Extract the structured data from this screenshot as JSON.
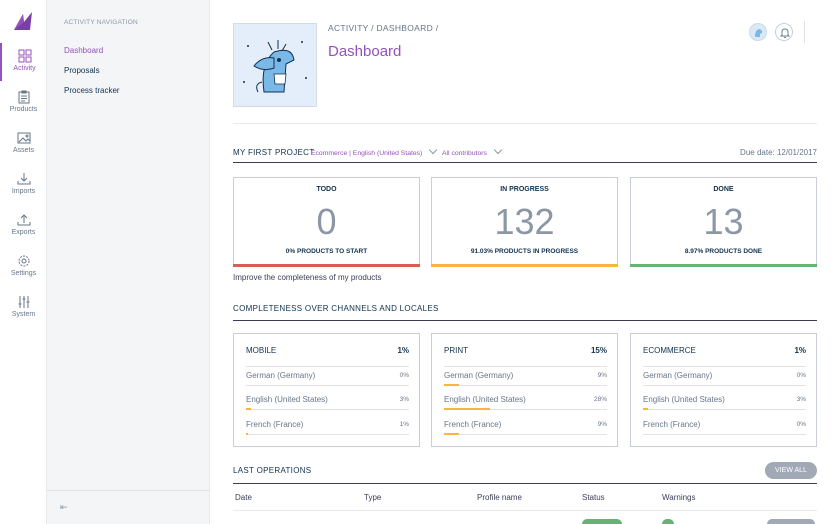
{
  "rail": {
    "items": [
      {
        "label": "Activity",
        "icon": "activity-icon"
      },
      {
        "label": "Products",
        "icon": "clipboard-icon"
      },
      {
        "label": "Assets",
        "icon": "image-icon"
      },
      {
        "label": "Imports",
        "icon": "download-icon"
      },
      {
        "label": "Exports",
        "icon": "upload-icon"
      },
      {
        "label": "Settings",
        "icon": "gear-icon"
      },
      {
        "label": "System",
        "icon": "sliders-icon"
      }
    ]
  },
  "subnav": {
    "title": "ACTIVITY NAVIGATION",
    "items": [
      {
        "label": "Dashboard"
      },
      {
        "label": "Proposals"
      },
      {
        "label": "Process tracker"
      }
    ],
    "collapse_icon": "collapse-left-icon"
  },
  "header": {
    "breadcrumb": "ACTIVITY / DASHBOARD /",
    "title": "Dashboard"
  },
  "project": {
    "title": "MY FIRST PROJECT",
    "channel_locale": "Ecommerce | English (United States)",
    "contributors": "All contributors",
    "due": "Due date: 12/01/2017"
  },
  "stats": [
    {
      "label": "TODO",
      "value": "0",
      "sub": "0% PRODUCTS TO START",
      "color": "#d4604f"
    },
    {
      "label": "IN PROGRESS",
      "value": "132",
      "sub": "91.03% PRODUCTS IN PROGRESS",
      "color": "#f9b53f"
    },
    {
      "label": "DONE",
      "value": "13",
      "sub": "8.97% PRODUCTS DONE",
      "color": "#67b373"
    }
  ],
  "improve_text": "Improve the completeness of my products",
  "completeness": {
    "title": "COMPLETENESS OVER CHANNELS AND LOCALES",
    "channels": [
      {
        "name": "MOBILE",
        "pct": "1%",
        "locales": [
          {
            "name": "German (Germany)",
            "pct": "0%",
            "value": 0
          },
          {
            "name": "English (United States)",
            "pct": "3%",
            "value": 3
          },
          {
            "name": "French (France)",
            "pct": "1%",
            "value": 1
          }
        ]
      },
      {
        "name": "PRINT",
        "pct": "15%",
        "locales": [
          {
            "name": "German (Germany)",
            "pct": "9%",
            "value": 9
          },
          {
            "name": "English (United States)",
            "pct": "28%",
            "value": 28
          },
          {
            "name": "French (France)",
            "pct": "9%",
            "value": 9
          }
        ]
      },
      {
        "name": "ECOMMERCE",
        "pct": "1%",
        "locales": [
          {
            "name": "German (Germany)",
            "pct": "0%",
            "value": 0
          },
          {
            "name": "English (United States)",
            "pct": "3%",
            "value": 3
          },
          {
            "name": "French (France)",
            "pct": "0%",
            "value": 0
          }
        ]
      }
    ]
  },
  "operations": {
    "title": "LAST OPERATIONS",
    "view_all": "VIEW ALL",
    "columns": [
      "Date",
      "Type",
      "Profile name",
      "Status",
      "Warnings"
    ]
  },
  "colors": {
    "accent": "#9452ba",
    "text": "#11324d"
  }
}
